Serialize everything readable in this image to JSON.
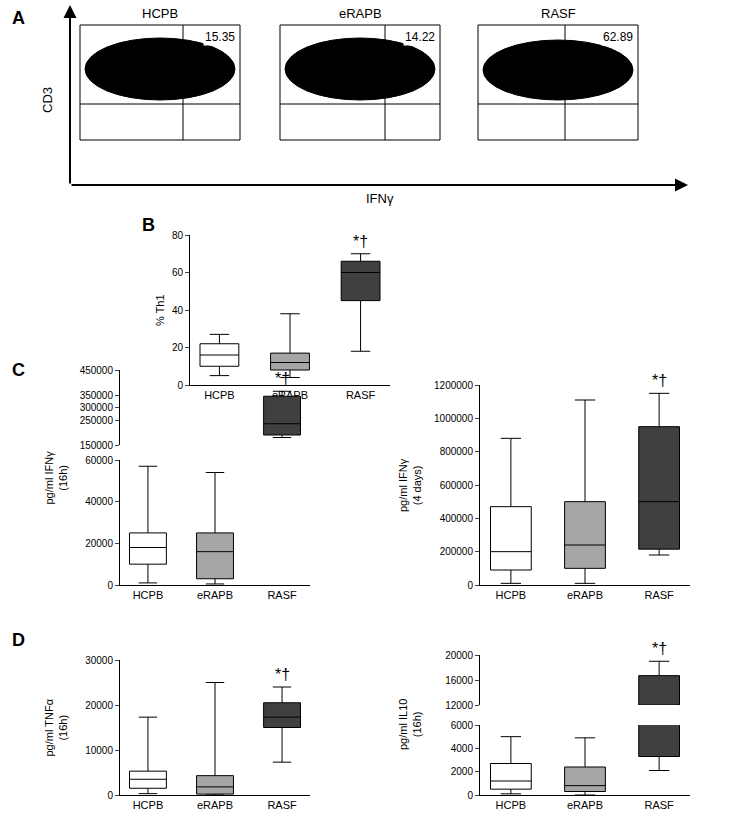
{
  "chart_data": [
    {
      "panel": "A",
      "type": "dot_plot",
      "x_label": "IFNγ",
      "y_label": "CD3",
      "plots": [
        {
          "title": "HCPB",
          "value": 15.35
        },
        {
          "title": "eRAPB",
          "value": 14.22
        },
        {
          "title": "RASF",
          "value": 62.89
        }
      ]
    },
    {
      "panel": "B",
      "type": "box",
      "y_label": "% Th1",
      "categories": [
        "HCPB",
        "eRAPB",
        "RASF"
      ],
      "colors": [
        "#ffffff",
        "#a6a6a6",
        "#404040"
      ],
      "min": [
        5,
        4,
        18
      ],
      "q1": [
        10,
        8,
        45
      ],
      "median": [
        16,
        12,
        60
      ],
      "q3": [
        22,
        17,
        66
      ],
      "max": [
        27,
        38,
        70
      ],
      "ylim": [
        0,
        80
      ],
      "yticks": [
        0,
        20,
        40,
        60,
        80
      ],
      "annotations": [
        {
          "category": "RASF",
          "text": "*†"
        }
      ]
    },
    {
      "panel": "C",
      "type": "box",
      "y_label": "pg/ml IFNγ\n(16h)",
      "categories": [
        "HCPB",
        "eRAPB",
        "RASF"
      ],
      "colors": [
        "#ffffff",
        "#a6a6a6",
        "#404040"
      ],
      "min": [
        1000,
        500,
        180000
      ],
      "q1": [
        10000,
        3000,
        190000
      ],
      "median": [
        18000,
        16000,
        235000
      ],
      "q3": [
        25000,
        25000,
        345000
      ],
      "max": [
        57000,
        54000,
        365000
      ],
      "ylim": [
        0,
        60000
      ],
      "yticks": [
        0,
        20000,
        40000,
        60000
      ],
      "y2lim": [
        150000,
        450000
      ],
      "y2ticks": [
        150000,
        250000,
        300000,
        350000,
        450000
      ],
      "annotations": [
        {
          "category": "RASF",
          "text": "*†"
        }
      ]
    },
    {
      "type": "box",
      "y_label": "pg/ml IFNγ\n(4 days)",
      "categories": [
        "HCPB",
        "eRAPB",
        "RASF"
      ],
      "colors": [
        "#ffffff",
        "#a6a6a6",
        "#404040"
      ],
      "min": [
        10000,
        10000,
        180000
      ],
      "q1": [
        90000,
        100000,
        215000
      ],
      "median": [
        200000,
        240000,
        500000
      ],
      "q3": [
        470000,
        500000,
        950000
      ],
      "max": [
        880000,
        1110000,
        1150000
      ],
      "ylim": [
        0,
        1200000
      ],
      "yticks": [
        0,
        200000,
        400000,
        600000,
        800000,
        1000000,
        1200000
      ],
      "annotations": [
        {
          "category": "RASF",
          "text": "*†"
        }
      ]
    },
    {
      "panel": "D",
      "type": "box",
      "y_label": "pg/ml TNFα\n(16h)",
      "categories": [
        "HCPB",
        "eRAPB",
        "RASF"
      ],
      "colors": [
        "#ffffff",
        "#a6a6a6",
        "#404040"
      ],
      "min": [
        300,
        0,
        7300
      ],
      "q1": [
        1500,
        200,
        15000
      ],
      "median": [
        3500,
        1800,
        17300
      ],
      "q3": [
        5300,
        4300,
        20500
      ],
      "max": [
        17300,
        25000,
        24000
      ],
      "ylim": [
        0,
        30000
      ],
      "yticks": [
        0,
        10000,
        20000,
        30000
      ],
      "annotations": [
        {
          "category": "RASF",
          "text": "*†"
        }
      ]
    },
    {
      "type": "box",
      "y_label": "pg/ml IL10\n(16h)",
      "categories": [
        "HCPB",
        "eRAPB",
        "RASF"
      ],
      "colors": [
        "#ffffff",
        "#a6a6a6",
        "#404040"
      ],
      "min": [
        100,
        0,
        2100
      ],
      "q1": [
        500,
        300,
        3300
      ],
      "median": [
        1200,
        800,
        12000
      ],
      "q3": [
        2700,
        2400,
        16700
      ],
      "max": [
        5000,
        4900,
        19000
      ],
      "ylim": [
        0,
        6000
      ],
      "yticks": [
        0,
        2000,
        4000,
        6000
      ],
      "y2lim": [
        12000,
        20000
      ],
      "y2ticks": [
        12000,
        16000,
        20000
      ],
      "annotations": [
        {
          "category": "RASF",
          "text": "*†"
        }
      ]
    }
  ]
}
